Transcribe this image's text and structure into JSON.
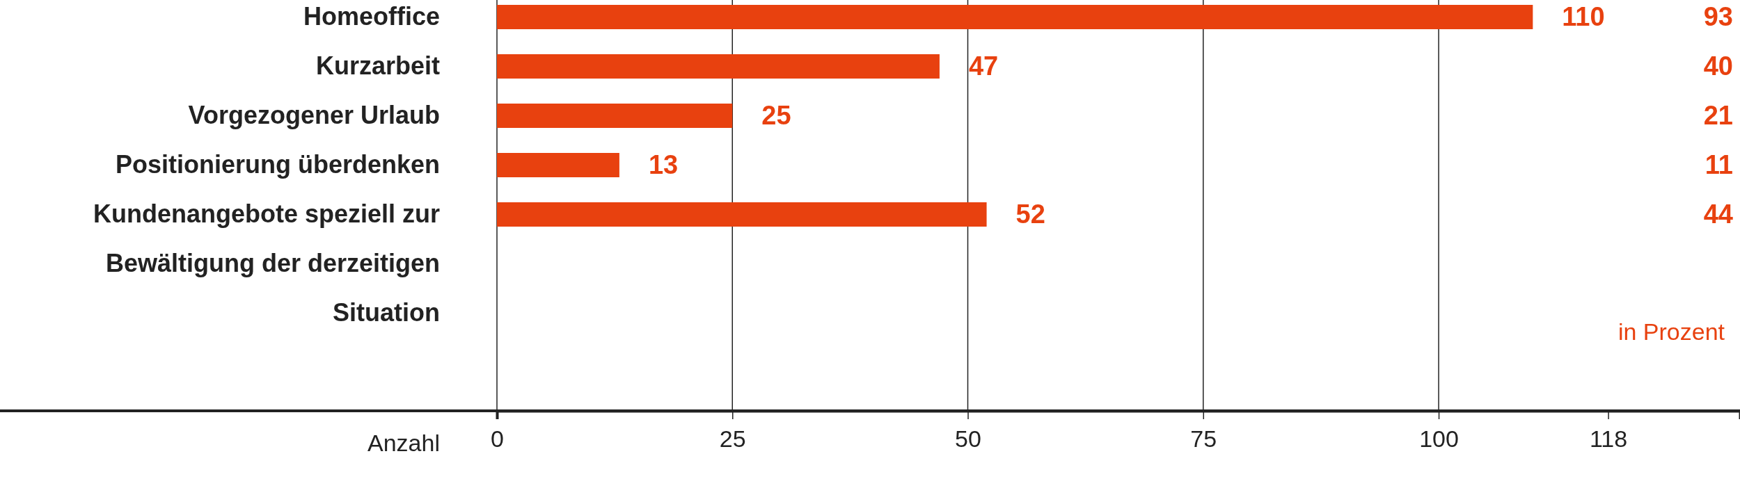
{
  "chart_data": {
    "type": "bar",
    "orientation": "horizontal",
    "categories": [
      "Homeoffice",
      "Kurzarbeit",
      "Vorgezogener Urlaub",
      "Positionierung überdenken",
      "Kundenangebote speziell zur Bewältigung der derzeitigen Situation"
    ],
    "values": [
      110,
      47,
      25,
      13,
      52
    ],
    "color": "#e8410f",
    "data_labels": true,
    "xlabel": "Anzahl",
    "xlim": [
      0,
      132
    ],
    "xticks": [
      0,
      25,
      50,
      75,
      100,
      118
    ],
    "grid": "x",
    "annotations": [
      "93",
      "40",
      "21",
      "11",
      "44",
      "in Prozent"
    ]
  }
}
